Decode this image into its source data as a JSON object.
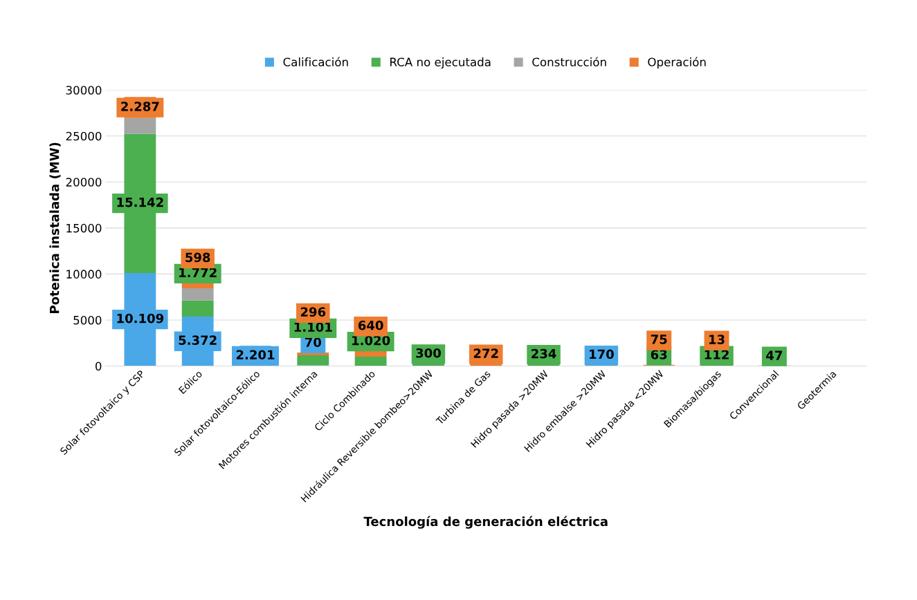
{
  "chart_data": {
    "type": "bar",
    "stacked": true,
    "xlabel": "Tecnología de generación eléctrica",
    "ylabel": "Potenica instalada (MW)",
    "categories": [
      "Solar fotovoltaico y CSP",
      "Eólico",
      "Solar fotovoltaico-Eólico",
      "Motores combustión interna",
      "Ciclo Combinado",
      "Hidráulica Reversible bombeo>20MW",
      "Turbina de Gas",
      "Hidro pasada >20MW",
      "Hidro embalse >20MW",
      "Hidro pasada <20MW",
      "Biomasa/biogas",
      "Convencional",
      "Geotermia"
    ],
    "series": [
      {
        "name": "Calificación",
        "color": "#4aa8e8",
        "values": [
          10109,
          5372,
          2201,
          70,
          null,
          null,
          null,
          null,
          170,
          null,
          null,
          null,
          null
        ],
        "value_labels": [
          "10.109",
          "5.372",
          "2.201",
          "70",
          null,
          null,
          null,
          null,
          "170",
          null,
          null,
          null,
          null
        ]
      },
      {
        "name": "RCA no ejecutada",
        "color": "#4caf50",
        "values": [
          15142,
          1772,
          null,
          1101,
          1020,
          300,
          null,
          234,
          null,
          63,
          112,
          47,
          null
        ],
        "value_labels": [
          "15.142",
          "1.772",
          null,
          "1.101",
          "1.020",
          "300",
          null,
          "234",
          null,
          "63",
          "112",
          "47",
          null
        ]
      },
      {
        "name": "Construcción",
        "color": "#a5a5a5",
        "values": [
          1700,
          1300,
          null,
          null,
          null,
          null,
          null,
          null,
          null,
          null,
          null,
          null,
          null
        ]
      },
      {
        "name": "Operación",
        "color": "#ed7d31",
        "values": [
          2287,
          598,
          null,
          296,
          640,
          null,
          272,
          null,
          null,
          75,
          13,
          null,
          null
        ],
        "value_labels": [
          "2.287",
          "598",
          null,
          "296",
          "640",
          null,
          "272",
          null,
          null,
          "75",
          "13",
          null,
          null
        ]
      }
    ],
    "ylim": [
      0,
      30000
    ],
    "yticks": [
      0,
      5000,
      10000,
      15000,
      20000,
      25000,
      30000
    ],
    "grid": "y",
    "legend": "top"
  }
}
